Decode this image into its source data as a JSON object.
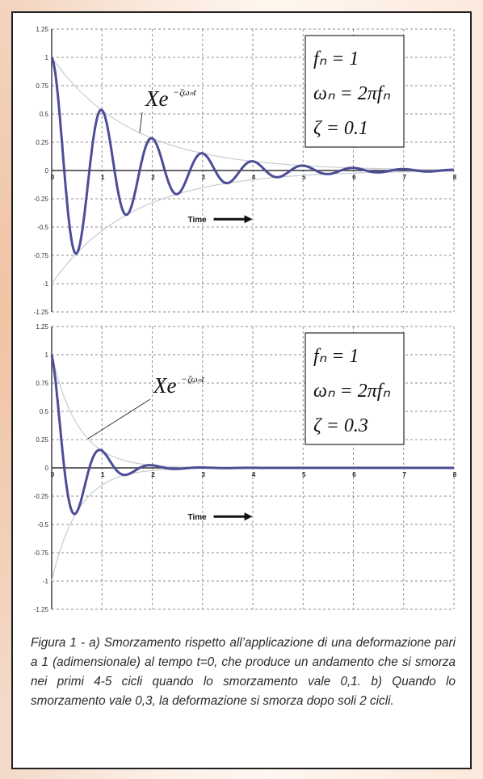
{
  "chart_data": [
    {
      "type": "line",
      "title": "",
      "xlabel": "Time",
      "ylabel": "",
      "xlim": [
        0,
        8
      ],
      "ylim": [
        -1.25,
        1.25
      ],
      "x_ticks": [
        "0",
        "1",
        "2",
        "3",
        "4",
        "5",
        "6",
        "7",
        "8"
      ],
      "y_ticks": [
        "1.25",
        "1",
        "0.75",
        "0.5",
        "0.25",
        "0",
        "-0.25",
        "-0.5",
        "-0.75",
        "-1",
        "-1.25"
      ],
      "grid": true,
      "envelope_label": "Xe",
      "envelope_label_exponent": "−ζωₙt",
      "params": [
        "fₙ = 1",
        "ωₙ = 2πfₙ",
        "ζ = 0.1"
      ],
      "series": [
        {
          "x": [
            0,
            0.25,
            0.5,
            0.75,
            1,
            1.25,
            1.5,
            1.75,
            2,
            2.25,
            2.5,
            2.75,
            3,
            3.25,
            3.5,
            3.75,
            4,
            4.25,
            4.5,
            4.75,
            5,
            5.25,
            5.5,
            5.75,
            6,
            6.25,
            6.5,
            6.75,
            7,
            7.25,
            7.5,
            7.75,
            8
          ],
          "y": [
            1,
            0.03,
            -0.73,
            -0.03,
            0.53,
            0.02,
            -0.39,
            -0.01,
            0.28,
            0.01,
            -0.21,
            -0.01,
            0.15,
            0.0,
            -0.11,
            0.0,
            0.08,
            0.0,
            -0.06,
            0.0,
            0.04,
            0.0,
            -0.03,
            0.0,
            0.02,
            0.0,
            -0.02,
            0.0,
            0.01,
            0.0,
            -0.01,
            0.0,
            0.01
          ]
        }
      ],
      "damping": 0.1,
      "omega": 6.283,
      "curve_color": "#4c4d96"
    },
    {
      "type": "line",
      "title": "",
      "xlabel": "Time",
      "ylabel": "",
      "xlim": [
        0,
        8
      ],
      "ylim": [
        -1.25,
        1.25
      ],
      "x_ticks": [
        "0",
        "1",
        "2",
        "3",
        "4",
        "5",
        "6",
        "7",
        "8"
      ],
      "y_ticks": [
        "1.25",
        "1",
        "0.75",
        "0.5",
        "0.25",
        "0",
        "-0.25",
        "-0.5",
        "-0.75",
        "-1",
        "-1.25"
      ],
      "grid": true,
      "envelope_label": "Xe",
      "envelope_label_exponent": "−ζωₙt",
      "params": [
        "fₙ = 1",
        "ωₙ = 2πfₙ",
        "ζ = 0.3"
      ],
      "series": [
        {
          "x": [
            0,
            0.25,
            0.5,
            0.75,
            1,
            1.25,
            1.5,
            1.75,
            2,
            2.25,
            2.5,
            2.75,
            3,
            3.25,
            3.5,
            3.75,
            4,
            4.25,
            4.5,
            4.75,
            5,
            5.25,
            5.5,
            5.75,
            6,
            6.25,
            6.5,
            6.75,
            7,
            7.25,
            7.5,
            7.75,
            8
          ],
          "y": [
            1,
            0.1,
            -0.39,
            -0.05,
            0.15,
            0.02,
            -0.06,
            -0.01,
            0.02,
            0.0,
            -0.01,
            0.0,
            0.0,
            0.0,
            0.0,
            0.0,
            0.0,
            0.0,
            0.0,
            0.0,
            0.0,
            0.0,
            0.0,
            0.0,
            0.0,
            0.0,
            0.0,
            0.0,
            0.0,
            0.0,
            0.0,
            0.0,
            0.0
          ]
        }
      ],
      "damping": 0.3,
      "omega": 6.283,
      "curve_color": "#4c4d96"
    }
  ],
  "caption": "Figura 1 - a) Smorzamento rispetto all’applicazione di una deformazione pari a 1 (adimensionale) al tempo t=0, che produce un andamento che si smorza nei primi 4-5 cicli quando lo smorzamento vale 0,1. b) Quando lo smorzamento vale 0,3, la deformazione si smorza dopo soli 2 cicli."
}
